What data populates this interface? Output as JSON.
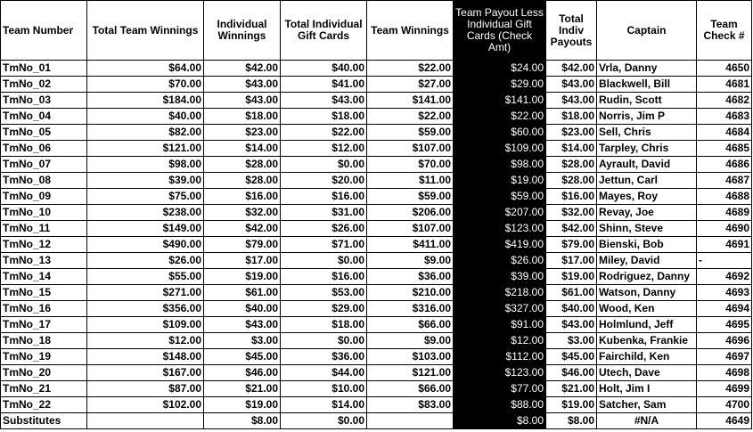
{
  "headers": [
    "Team Number",
    "Total Team Winnings",
    "Individual Winnings",
    "Total Individual Gift Cards",
    "Team Winnings",
    "Team Payout Less Individual Gift Cards (Check Amt)",
    "Total Indiv Payouts",
    "Captain",
    "Team Check #"
  ],
  "rows": [
    [
      "TmNo_01",
      "$64.00",
      "$42.00",
      "$40.00",
      "$22.00",
      "$24.00",
      "$42.00",
      "Vrla, Danny",
      "4650"
    ],
    [
      "TmNo_02",
      "$70.00",
      "$43.00",
      "$41.00",
      "$27.00",
      "$29.00",
      "$43.00",
      "Blackwell, Bill",
      "4681"
    ],
    [
      "TmNo_03",
      "$184.00",
      "$43.00",
      "$43.00",
      "$141.00",
      "$141.00",
      "$43.00",
      "Rudin, Scott",
      "4682"
    ],
    [
      "TmNo_04",
      "$40.00",
      "$18.00",
      "$18.00",
      "$22.00",
      "$22.00",
      "$18.00",
      "Norris, Jim P",
      "4683"
    ],
    [
      "TmNo_05",
      "$82.00",
      "$23.00",
      "$22.00",
      "$59.00",
      "$60.00",
      "$23.00",
      "Sell, Chris",
      "4684"
    ],
    [
      "TmNo_06",
      "$121.00",
      "$14.00",
      "$12.00",
      "$107.00",
      "$109.00",
      "$14.00",
      "Tarpley, Chris",
      "4685"
    ],
    [
      "TmNo_07",
      "$98.00",
      "$28.00",
      "$0.00",
      "$70.00",
      "$98.00",
      "$28.00",
      "Ayrault, David",
      "4686"
    ],
    [
      "TmNo_08",
      "$39.00",
      "$28.00",
      "$20.00",
      "$11.00",
      "$19.00",
      "$28.00",
      "Jettun, Carl",
      "4687"
    ],
    [
      "TmNo_09",
      "$75.00",
      "$16.00",
      "$16.00",
      "$59.00",
      "$59.00",
      "$16.00",
      "Mayes, Roy",
      "4688"
    ],
    [
      "TmNo_10",
      "$238.00",
      "$32.00",
      "$31.00",
      "$206.00",
      "$207.00",
      "$32.00",
      "Revay, Joe",
      "4689"
    ],
    [
      "TmNo_11",
      "$149.00",
      "$42.00",
      "$26.00",
      "$107.00",
      "$123.00",
      "$42.00",
      "Shinn, Steve",
      "4690"
    ],
    [
      "TmNo_12",
      "$490.00",
      "$79.00",
      "$71.00",
      "$411.00",
      "$419.00",
      "$79.00",
      "Bienski, Bob",
      "4691"
    ],
    [
      "TmNo_13",
      "$26.00",
      "$17.00",
      "$0.00",
      "$9.00",
      "$26.00",
      "$17.00",
      "Miley, David",
      "-"
    ],
    [
      "TmNo_14",
      "$55.00",
      "$19.00",
      "$16.00",
      "$36.00",
      "$39.00",
      "$19.00",
      "Rodriguez, Danny",
      "4692"
    ],
    [
      "TmNo_15",
      "$271.00",
      "$61.00",
      "$53.00",
      "$210.00",
      "$218.00",
      "$61.00",
      "Watson, Danny",
      "4693"
    ],
    [
      "TmNo_16",
      "$356.00",
      "$40.00",
      "$29.00",
      "$316.00",
      "$327.00",
      "$40.00",
      "Wood, Ken",
      "4694"
    ],
    [
      "TmNo_17",
      "$109.00",
      "$43.00",
      "$18.00",
      "$66.00",
      "$91.00",
      "$43.00",
      "Holmlund, Jeff",
      "4695"
    ],
    [
      "TmNo_18",
      "$12.00",
      "$3.00",
      "$0.00",
      "$9.00",
      "$12.00",
      "$3.00",
      "Kubenka, Frankie",
      "4696"
    ],
    [
      "TmNo_19",
      "$148.00",
      "$45.00",
      "$36.00",
      "$103.00",
      "$112.00",
      "$45.00",
      "Fairchild, Ken",
      "4697"
    ],
    [
      "TmNo_20",
      "$167.00",
      "$46.00",
      "$44.00",
      "$121.00",
      "$123.00",
      "$46.00",
      "Utech, Dave",
      "4698"
    ],
    [
      "TmNo_21",
      "$87.00",
      "$21.00",
      "$10.00",
      "$66.00",
      "$77.00",
      "$21.00",
      "Holt, Jim I",
      "4699"
    ],
    [
      "TmNo_22",
      "$102.00",
      "$19.00",
      "$14.00",
      "$83.00",
      "$88.00",
      "$19.00",
      "Satcher, Sam",
      "4700"
    ],
    [
      "Substitutes",
      "",
      "$8.00",
      "$0.00",
      "",
      "$8.00",
      "$8.00",
      "#N/A",
      "4649"
    ]
  ]
}
